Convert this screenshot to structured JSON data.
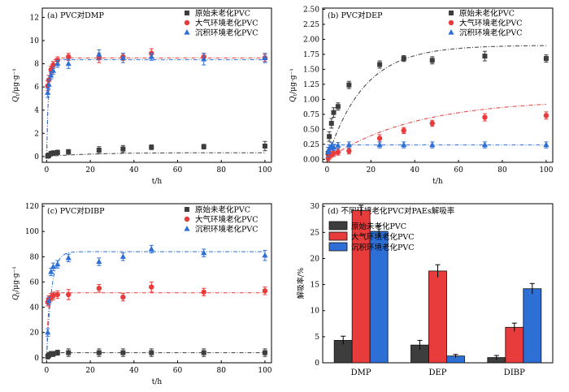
{
  "chart_data": [
    {
      "type": "scatter",
      "panel_label": "(a) PVC对DMP",
      "xlabel": "t/h",
      "ylabel": "Qt/μg·g⁻¹",
      "ylabel_main": "Q",
      "ylabel_sub": "t",
      "ylabel_rest": "/μg·g⁻¹",
      "xlim": [
        -2,
        103
      ],
      "ylim": [
        -0.5,
        12.8
      ],
      "xticks": [
        0,
        20,
        40,
        60,
        80,
        100
      ],
      "yticks": [
        0,
        2,
        4,
        6,
        8,
        10,
        12
      ],
      "series": [
        {
          "name": "原始未老化PVC",
          "color": "#3d3d3d",
          "marker": "square",
          "x": [
            0.5,
            1,
            2,
            3,
            5,
            10,
            24,
            35,
            48,
            72,
            100
          ],
          "y": [
            0.05,
            0.1,
            0.25,
            0.3,
            0.35,
            0.4,
            0.55,
            0.65,
            0.8,
            0.85,
            0.9
          ],
          "err": [
            0.2,
            0.2,
            0.2,
            0.2,
            0.2,
            0.2,
            0.3,
            0.3,
            0.2,
            0.2,
            0.4
          ],
          "fit": [
            0,
            0.33,
            0.48,
            0.63,
            0.73,
            0.79,
            0.83,
            0.86
          ]
        },
        {
          "name": "大气环境老化PVC",
          "color": "#e83b3b",
          "marker": "circle",
          "x": [
            0.5,
            1,
            2,
            3,
            5,
            10,
            24,
            35,
            48,
            72,
            100
          ],
          "y": [
            6.1,
            6.6,
            7.5,
            7.9,
            8.3,
            8.6,
            8.5,
            8.6,
            8.9,
            8.6,
            8.5
          ],
          "err": [
            0.4,
            0.4,
            0.3,
            0.3,
            0.3,
            0.3,
            0.4,
            0.3,
            0.4,
            0.3,
            0.3
          ],
          "fit": [
            0,
            8.5,
            8.5
          ]
        },
        {
          "name": "沉积环境老化PVC",
          "color": "#2e6fd6",
          "marker": "triangle",
          "x": [
            0.5,
            1,
            2,
            3,
            5,
            10,
            24,
            35,
            48,
            72,
            100
          ],
          "y": [
            5.5,
            6.2,
            7.0,
            7.4,
            8.0,
            8.0,
            8.8,
            8.5,
            8.6,
            8.4,
            8.5
          ],
          "err": [
            0.4,
            0.4,
            0.3,
            0.3,
            0.3,
            0.4,
            0.4,
            0.4,
            0.3,
            0.5,
            0.4
          ],
          "fit": [
            0,
            8.35,
            8.35
          ]
        }
      ]
    },
    {
      "type": "scatter",
      "panel_label": "(b) PVC对DEP",
      "xlabel": "t/h",
      "ylabel": "Qt/μg·g⁻¹",
      "ylabel_main": "Q",
      "ylabel_sub": "t",
      "ylabel_rest": "/μg·g⁻¹",
      "xlim": [
        -2,
        103
      ],
      "ylim": [
        -0.05,
        2.52
      ],
      "xticks": [
        0,
        20,
        40,
        60,
        80,
        100
      ],
      "yticks": [
        0.0,
        0.25,
        0.5,
        0.75,
        1.0,
        1.25,
        1.5,
        1.75,
        2.0,
        2.25,
        2.5
      ],
      "series": [
        {
          "name": "原始未老化PVC",
          "color": "#3d3d3d",
          "marker": "square",
          "x": [
            0.5,
            1,
            2,
            3,
            5,
            10,
            24,
            35,
            48,
            72,
            100
          ],
          "y": [
            0.1,
            0.38,
            0.6,
            0.78,
            0.88,
            1.24,
            1.58,
            1.68,
            1.65,
            1.72,
            1.68
          ],
          "err": [
            0.1,
            0.08,
            0.08,
            0.08,
            0.06,
            0.06,
            0.06,
            0.05,
            0.06,
            0.08,
            0.06
          ],
          "fit": [
            0,
            1.9
          ]
        },
        {
          "name": "大气环境老化PVC",
          "color": "#e83b3b",
          "marker": "circle",
          "x": [
            0.5,
            1,
            2,
            3,
            5,
            10,
            24,
            35,
            48,
            72,
            100
          ],
          "y": [
            0.02,
            0.05,
            0.08,
            0.1,
            0.12,
            0.14,
            0.35,
            0.48,
            0.6,
            0.7,
            0.73
          ],
          "err": [
            0.05,
            0.05,
            0.05,
            0.05,
            0.05,
            0.05,
            0.06,
            0.05,
            0.05,
            0.06,
            0.06
          ],
          "fit": [
            0,
            1.0
          ]
        },
        {
          "name": "沉积环境老化PVC",
          "color": "#2e6fd6",
          "marker": "triangle",
          "x": [
            0.5,
            1,
            2,
            3,
            5,
            10,
            24,
            35,
            48,
            72,
            100
          ],
          "y": [
            0.12,
            0.18,
            0.22,
            0.2,
            0.23,
            0.24,
            0.24,
            0.24,
            0.24,
            0.24,
            0.24
          ],
          "err": [
            0.08,
            0.06,
            0.06,
            0.05,
            0.05,
            0.05,
            0.05,
            0.05,
            0.05,
            0.05,
            0.05
          ],
          "fit": [
            0,
            0.24
          ]
        }
      ]
    },
    {
      "type": "scatter",
      "panel_label": "(c) PVC对DIBP",
      "xlabel": "t/h",
      "ylabel": "Qt/μg·g⁻¹",
      "ylabel_main": "Q",
      "ylabel_sub": "t",
      "ylabel_rest": "/μg·g⁻¹",
      "xlim": [
        -2,
        103
      ],
      "ylim": [
        -4,
        122
      ],
      "xticks": [
        0,
        20,
        40,
        60,
        80,
        100
      ],
      "yticks": [
        0,
        20,
        40,
        60,
        80,
        100,
        120
      ],
      "series": [
        {
          "name": "原始未老化PVC",
          "color": "#3d3d3d",
          "marker": "square",
          "x": [
            0.5,
            1,
            2,
            3,
            5,
            10,
            24,
            35,
            48,
            72,
            100
          ],
          "y": [
            1,
            2,
            3,
            3,
            4,
            4,
            4,
            4,
            4,
            4,
            4
          ],
          "err": [
            2,
            2,
            2,
            2,
            2,
            3,
            3,
            3,
            3,
            3,
            3
          ],
          "fit": [
            0,
            4,
            4
          ]
        },
        {
          "name": "大气环境老化PVC",
          "color": "#e83b3b",
          "marker": "circle",
          "x": [
            0.5,
            1,
            2,
            3,
            5,
            10,
            24,
            35,
            48,
            72,
            100
          ],
          "y": [
            44,
            46,
            48,
            49,
            50,
            50,
            55,
            48,
            56,
            52,
            53
          ],
          "err": [
            3,
            3,
            3,
            3,
            3,
            4,
            3,
            3,
            4,
            3,
            3
          ],
          "fit": [
            0,
            51.5,
            51.5
          ]
        },
        {
          "name": "沉积环境老化PVC",
          "color": "#2e6fd6",
          "marker": "triangle",
          "x": [
            0.5,
            1,
            2,
            3,
            5,
            10,
            24,
            35,
            48,
            72,
            100
          ],
          "y": [
            20,
            45,
            68,
            72,
            74,
            79,
            76,
            80,
            86,
            83,
            81
          ],
          "err": [
            3,
            3,
            3,
            3,
            3,
            3,
            3,
            3,
            3,
            3,
            4
          ],
          "fit": [
            0,
            84
          ]
        }
      ]
    },
    {
      "type": "bar",
      "panel_label": "(d) 不同环境老化PVC对PAEs解吸率",
      "xlabel": "",
      "ylabel": "解吸率/%",
      "ylim": [
        0,
        30.5
      ],
      "yticks": [
        0,
        5,
        10,
        15,
        20,
        25,
        30
      ],
      "categories": [
        "DMP",
        "DEP",
        "DIBP"
      ],
      "series": [
        {
          "name": "原始未老化PVC",
          "color": "#3d3d3d",
          "values": [
            4.3,
            3.4,
            1.0
          ],
          "err": [
            0.8,
            0.9,
            0.4
          ]
        },
        {
          "name": "大气环境老化PVC",
          "color": "#e83b3b",
          "values": [
            29.2,
            17.6,
            6.8
          ],
          "err": [
            1.0,
            1.2,
            0.8
          ]
        },
        {
          "name": "沉积环境老化PVC",
          "color": "#2e6fd6",
          "values": [
            25.2,
            1.3,
            14.2
          ],
          "err": [
            1.0,
            0.3,
            1.0
          ]
        }
      ]
    }
  ]
}
